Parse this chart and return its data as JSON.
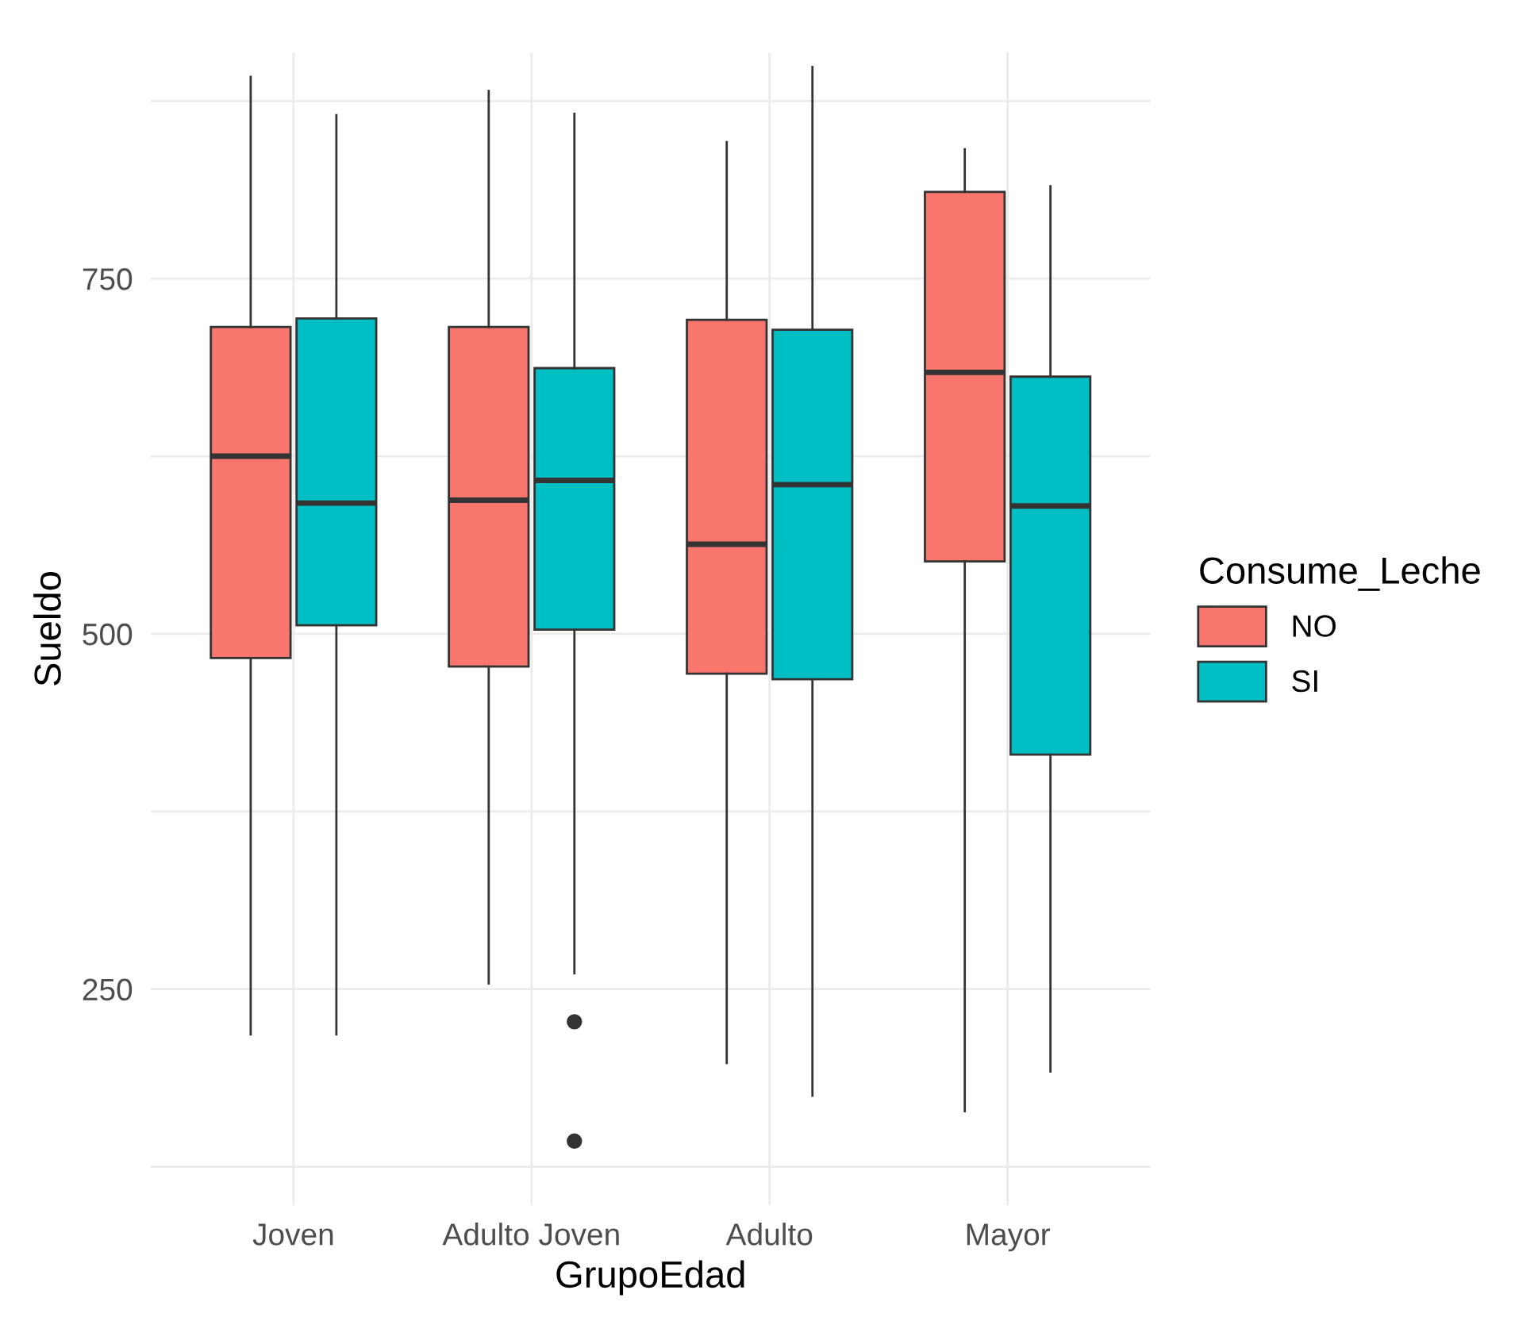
{
  "chart_data": {
    "type": "box",
    "xlabel": "GrupoEdad",
    "ylabel": "Sueldo",
    "legend_title": "Consume_Leche",
    "legend": "right",
    "categories": [
      "Joven",
      "Adulto Joven",
      "Adulto",
      "Mayor"
    ],
    "ylim": [
      98,
      909
    ],
    "yticks": [
      {
        "value": 125,
        "label": null
      },
      250,
      {
        "value": 375,
        "label": null
      },
      500,
      {
        "value": 625,
        "label": null
      },
      750,
      {
        "value": 875,
        "label": null
      }
    ],
    "grid": true,
    "series": [
      {
        "name": "NO",
        "color": "#f8766d",
        "boxes": [
          {
            "low": 218,
            "q1": 483,
            "median": 625,
            "q3": 716,
            "high": 892
          },
          {
            "low": 254,
            "q1": 477,
            "median": 594,
            "q3": 716,
            "high": 882
          },
          {
            "low": 198,
            "q1": 472,
            "median": 563,
            "q3": 721,
            "high": 846
          },
          {
            "low": 164,
            "q1": 551,
            "median": 684,
            "q3": 811,
            "high": 841
          }
        ]
      },
      {
        "name": "SI",
        "color": "#00bfc4",
        "boxes": [
          {
            "low": 218,
            "q1": 506,
            "median": 592,
            "q3": 722,
            "high": 865
          },
          {
            "low": 261,
            "q1": 503,
            "median": 608,
            "q3": 687,
            "high": 866,
            "outliers": [
              227,
              143
            ]
          },
          {
            "low": 175,
            "q1": 468,
            "median": 605,
            "q3": 714,
            "high": 899
          },
          {
            "low": 192,
            "q1": 415,
            "median": 590,
            "q3": 681,
            "high": 815
          }
        ]
      }
    ]
  }
}
